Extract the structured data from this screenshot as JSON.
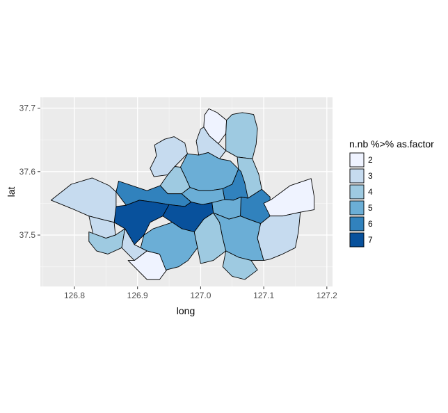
{
  "chart_data": {
    "type": "choropleth",
    "x_axis": {
      "label": "long",
      "range": [
        126.746,
        127.209
      ],
      "ticks": [
        126.8,
        126.9,
        127.0,
        127.1,
        127.2
      ],
      "tick_labels": [
        "126.8",
        "126.9",
        "127.0",
        "127.1",
        "127.2"
      ]
    },
    "y_axis": {
      "label": "lat",
      "range": [
        37.419,
        37.717
      ],
      "ticks": [
        37.5,
        37.6,
        37.7
      ],
      "tick_labels": [
        "37.5",
        "37.6",
        "37.7"
      ]
    },
    "grid": true,
    "legend": {
      "title": "n.nb %>% as.factor",
      "position": "right",
      "levels": [
        {
          "label": "2",
          "color": "#eff3ff"
        },
        {
          "label": "3",
          "color": "#c6dbef"
        },
        {
          "label": "4",
          "color": "#9ecae1"
        },
        {
          "label": "5",
          "color": "#6baed6"
        },
        {
          "label": "6",
          "color": "#3182bd"
        },
        {
          "label": "7",
          "color": "#08519c"
        }
      ]
    },
    "regions": [
      {
        "level": "2",
        "polygon": [
          [
            127.013,
            37.699
          ],
          [
            127.026,
            37.693
          ],
          [
            127.041,
            37.681
          ],
          [
            127.04,
            37.66
          ],
          [
            127.028,
            37.644
          ],
          [
            127.014,
            37.656
          ],
          [
            127.005,
            37.67
          ],
          [
            127.006,
            37.689
          ]
        ]
      },
      {
        "level": "3",
        "polygon": [
          [
            127.005,
            37.67
          ],
          [
            127.014,
            37.656
          ],
          [
            127.028,
            37.644
          ],
          [
            127.04,
            37.633
          ],
          [
            127.03,
            37.62
          ],
          [
            127.012,
            37.63
          ],
          [
            126.997,
            37.626
          ],
          [
            126.993,
            37.648
          ],
          [
            127.0,
            37.667
          ]
        ]
      },
      {
        "level": "4",
        "polygon": [
          [
            127.05,
            37.69
          ],
          [
            127.066,
            37.693
          ],
          [
            127.084,
            37.69
          ],
          [
            127.09,
            37.668
          ],
          [
            127.088,
            37.643
          ],
          [
            127.082,
            37.62
          ],
          [
            127.058,
            37.623
          ],
          [
            127.04,
            37.633
          ],
          [
            127.04,
            37.66
          ],
          [
            127.041,
            37.681
          ]
        ]
      },
      {
        "level": "3",
        "polygon": [
          [
            126.958,
            37.655
          ],
          [
            126.975,
            37.645
          ],
          [
            126.979,
            37.628
          ],
          [
            126.959,
            37.608
          ],
          [
            126.948,
            37.595
          ],
          [
            126.926,
            37.592
          ],
          [
            126.92,
            37.605
          ],
          [
            126.93,
            37.625
          ],
          [
            126.927,
            37.642
          ],
          [
            126.943,
            37.651
          ]
        ]
      },
      {
        "level": "5",
        "polygon": [
          [
            126.979,
            37.628
          ],
          [
            126.997,
            37.626
          ],
          [
            127.012,
            37.63
          ],
          [
            127.03,
            37.62
          ],
          [
            127.047,
            37.617
          ],
          [
            127.06,
            37.604
          ],
          [
            127.05,
            37.58
          ],
          [
            127.035,
            37.573
          ],
          [
            127.015,
            37.57
          ],
          [
            126.998,
            37.57
          ],
          [
            126.983,
            37.575
          ],
          [
            126.975,
            37.593
          ],
          [
            126.968,
            37.607
          ]
        ]
      },
      {
        "level": "4",
        "polygon": [
          [
            127.058,
            37.623
          ],
          [
            127.082,
            37.62
          ],
          [
            127.092,
            37.596
          ],
          [
            127.097,
            37.572
          ],
          [
            127.075,
            37.558
          ],
          [
            127.064,
            37.56
          ],
          [
            127.06,
            37.58
          ],
          [
            127.06,
            37.604
          ]
        ]
      },
      {
        "level": "4",
        "polygon": [
          [
            126.968,
            37.607
          ],
          [
            126.975,
            37.593
          ],
          [
            126.983,
            37.575
          ],
          [
            126.97,
            37.565
          ],
          [
            126.948,
            37.565
          ],
          [
            126.936,
            37.578
          ],
          [
            126.948,
            37.595
          ],
          [
            126.959,
            37.608
          ]
        ]
      },
      {
        "level": "6",
        "polygon": [
          [
            127.06,
            37.604
          ],
          [
            127.05,
            37.58
          ],
          [
            127.035,
            37.573
          ],
          [
            127.038,
            37.556
          ],
          [
            127.052,
            37.555
          ],
          [
            127.064,
            37.56
          ],
          [
            127.075,
            37.558
          ],
          [
            127.07,
            37.582
          ],
          [
            127.064,
            37.6
          ]
        ]
      },
      {
        "level": "5",
        "polygon": [
          [
            126.983,
            37.575
          ],
          [
            126.998,
            37.57
          ],
          [
            127.015,
            37.57
          ],
          [
            127.035,
            37.573
          ],
          [
            127.038,
            37.556
          ],
          [
            127.018,
            37.551
          ],
          [
            127.003,
            37.548
          ],
          [
            126.985,
            37.552
          ],
          [
            126.97,
            37.565
          ]
        ]
      },
      {
        "level": "5",
        "polygon": [
          [
            127.038,
            37.556
          ],
          [
            127.052,
            37.555
          ],
          [
            127.064,
            37.56
          ],
          [
            127.075,
            37.558
          ],
          [
            127.063,
            37.53
          ],
          [
            127.045,
            37.525
          ],
          [
            127.02,
            37.535
          ],
          [
            127.018,
            37.551
          ]
        ]
      },
      {
        "level": "6",
        "polygon": [
          [
            127.064,
            37.56
          ],
          [
            127.075,
            37.558
          ],
          [
            127.097,
            37.572
          ],
          [
            127.11,
            37.56
          ],
          [
            127.11,
            37.53
          ],
          [
            127.095,
            37.518
          ],
          [
            127.073,
            37.526
          ],
          [
            127.063,
            37.53
          ]
        ]
      },
      {
        "level": "2",
        "polygon": [
          [
            127.1,
            37.55
          ],
          [
            127.112,
            37.556
          ],
          [
            127.142,
            37.578
          ],
          [
            127.175,
            37.589
          ],
          [
            127.18,
            37.56
          ],
          [
            127.18,
            37.54
          ],
          [
            127.158,
            37.536
          ],
          [
            127.13,
            37.53
          ],
          [
            127.11,
            37.53
          ]
        ]
      },
      {
        "level": "6",
        "polygon": [
          [
            126.87,
            37.585
          ],
          [
            126.915,
            37.57
          ],
          [
            126.936,
            37.578
          ],
          [
            126.948,
            37.565
          ],
          [
            126.97,
            37.565
          ],
          [
            126.985,
            37.552
          ],
          [
            126.975,
            37.545
          ],
          [
            126.95,
            37.548
          ],
          [
            126.925,
            37.552
          ],
          [
            126.903,
            37.555
          ],
          [
            126.882,
            37.547
          ],
          [
            126.866,
            37.568
          ]
        ]
      },
      {
        "level": "7",
        "polygon": [
          [
            126.866,
            37.545
          ],
          [
            126.882,
            37.547
          ],
          [
            126.903,
            37.555
          ],
          [
            126.925,
            37.552
          ],
          [
            126.95,
            37.548
          ],
          [
            126.94,
            37.53
          ],
          [
            126.92,
            37.52
          ],
          [
            126.91,
            37.5
          ],
          [
            126.895,
            37.485
          ],
          [
            126.88,
            37.51
          ],
          [
            126.863,
            37.52
          ]
        ]
      },
      {
        "level": "7",
        "polygon": [
          [
            126.95,
            37.548
          ],
          [
            126.975,
            37.545
          ],
          [
            126.985,
            37.552
          ],
          [
            127.003,
            37.548
          ],
          [
            127.018,
            37.551
          ],
          [
            127.02,
            37.535
          ],
          [
            127.005,
            37.525
          ],
          [
            126.99,
            37.505
          ],
          [
            126.97,
            37.51
          ],
          [
            126.955,
            37.52
          ],
          [
            126.94,
            37.53
          ]
        ]
      },
      {
        "level": "3",
        "polygon": [
          [
            126.763,
            37.555
          ],
          [
            126.795,
            37.58
          ],
          [
            126.828,
            37.59
          ],
          [
            126.855,
            37.578
          ],
          [
            126.866,
            37.568
          ],
          [
            126.866,
            37.545
          ],
          [
            126.863,
            37.52
          ],
          [
            126.842,
            37.525
          ],
          [
            126.823,
            37.53
          ],
          [
            126.8,
            37.54
          ]
        ]
      },
      {
        "level": "3",
        "polygon": [
          [
            126.823,
            37.53
          ],
          [
            126.842,
            37.525
          ],
          [
            126.863,
            37.52
          ],
          [
            126.865,
            37.5
          ],
          [
            126.85,
            37.495
          ],
          [
            126.83,
            37.5
          ]
        ]
      },
      {
        "level": "4",
        "polygon": [
          [
            126.823,
            37.505
          ],
          [
            126.85,
            37.495
          ],
          [
            126.865,
            37.5
          ],
          [
            126.88,
            37.51
          ],
          [
            126.875,
            37.48
          ],
          [
            126.853,
            37.47
          ],
          [
            126.835,
            37.475
          ],
          [
            126.823,
            37.49
          ]
        ]
      },
      {
        "level": "3",
        "polygon": [
          [
            126.875,
            37.48
          ],
          [
            126.88,
            37.51
          ],
          [
            126.895,
            37.485
          ],
          [
            126.905,
            37.48
          ],
          [
            126.915,
            37.475
          ],
          [
            126.895,
            37.46
          ]
        ]
      },
      {
        "level": "2",
        "polygon": [
          [
            126.885,
            37.46
          ],
          [
            126.895,
            37.46
          ],
          [
            126.915,
            37.475
          ],
          [
            126.935,
            37.47
          ],
          [
            126.95,
            37.45
          ],
          [
            126.935,
            37.43
          ],
          [
            126.915,
            37.43
          ]
        ]
      },
      {
        "level": "5",
        "polygon": [
          [
            126.915,
            37.475
          ],
          [
            126.905,
            37.48
          ],
          [
            126.91,
            37.5
          ],
          [
            126.925,
            37.51
          ],
          [
            126.955,
            37.52
          ],
          [
            126.97,
            37.51
          ],
          [
            126.99,
            37.505
          ],
          [
            126.995,
            37.48
          ],
          [
            126.98,
            37.46
          ],
          [
            126.965,
            37.45
          ],
          [
            126.945,
            37.445
          ],
          [
            126.935,
            37.47
          ]
        ]
      },
      {
        "level": "4",
        "polygon": [
          [
            126.99,
            37.505
          ],
          [
            127.005,
            37.525
          ],
          [
            127.02,
            37.535
          ],
          [
            127.03,
            37.52
          ],
          [
            127.035,
            37.495
          ],
          [
            127.04,
            37.475
          ],
          [
            127.02,
            37.46
          ],
          [
            127.0,
            37.455
          ],
          [
            126.995,
            37.48
          ]
        ]
      },
      {
        "level": "5",
        "polygon": [
          [
            127.02,
            37.535
          ],
          [
            127.045,
            37.525
          ],
          [
            127.063,
            37.53
          ],
          [
            127.073,
            37.526
          ],
          [
            127.095,
            37.518
          ],
          [
            127.09,
            37.495
          ],
          [
            127.1,
            37.46
          ],
          [
            127.08,
            37.46
          ],
          [
            127.06,
            37.465
          ],
          [
            127.04,
            37.475
          ],
          [
            127.035,
            37.495
          ],
          [
            127.03,
            37.52
          ]
        ]
      },
      {
        "level": "4",
        "polygon": [
          [
            127.04,
            37.475
          ],
          [
            127.06,
            37.465
          ],
          [
            127.08,
            37.46
          ],
          [
            127.09,
            37.445
          ],
          [
            127.07,
            37.43
          ],
          [
            127.05,
            37.435
          ],
          [
            127.035,
            37.45
          ]
        ]
      },
      {
        "level": "3",
        "polygon": [
          [
            127.095,
            37.518
          ],
          [
            127.11,
            37.53
          ],
          [
            127.13,
            37.53
          ],
          [
            127.158,
            37.536
          ],
          [
            127.155,
            37.505
          ],
          [
            127.15,
            37.48
          ],
          [
            127.13,
            37.47
          ],
          [
            127.11,
            37.462
          ],
          [
            127.1,
            37.46
          ],
          [
            127.09,
            37.495
          ]
        ]
      }
    ]
  }
}
